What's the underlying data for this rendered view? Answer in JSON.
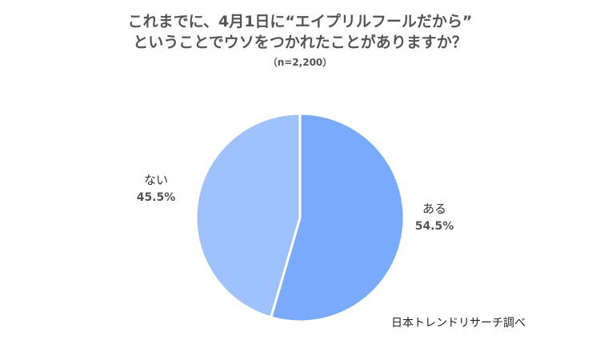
{
  "chart_data": {
    "type": "pie",
    "title_line1": "これまでに、4月1日に“エイプリルフールだから”",
    "title_line2": "ということでウソをつかれたことがありますか？",
    "subtitle": "（n=2,200）",
    "slices": [
      {
        "label": "ある",
        "value": 54.5,
        "display": "54.5%",
        "color": "#7aaafc"
      },
      {
        "label": "ない",
        "value": 45.5,
        "display": "45.5%",
        "color": "#9fc2fd"
      }
    ],
    "start_angle_deg": 0,
    "direction": "clockwise"
  },
  "source": "日本トレンドリサーチ調べ"
}
